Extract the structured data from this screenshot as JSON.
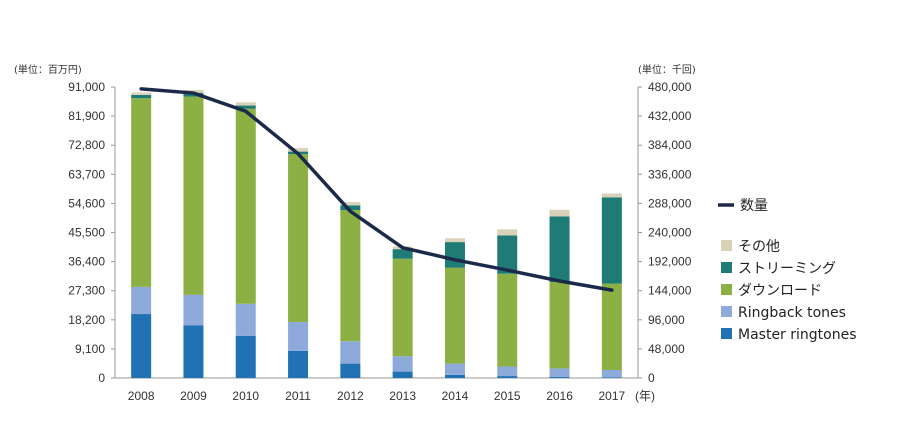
{
  "chart_data": {
    "type": "bar",
    "stacked": true,
    "secondary_line": true,
    "categories": [
      "2008",
      "2009",
      "2010",
      "2011",
      "2012",
      "2013",
      "2014",
      "2015",
      "2016",
      "2017"
    ],
    "x_suffix": "(年)",
    "left_unit": "(単位：百万円)",
    "right_unit": "(単位：千回)",
    "y_left": {
      "ylim": [
        0,
        91000
      ],
      "ticks": [
        "0",
        "9,100",
        "18,200",
        "27,300",
        "36,400",
        "45,500",
        "54,600",
        "63,700",
        "72,800",
        "81,900",
        "91,000"
      ]
    },
    "y_right": {
      "ylim": [
        0,
        480000
      ],
      "ticks": [
        "0",
        "48,000",
        "96,000",
        "144,000",
        "192,000",
        "240,000",
        "288,000",
        "336,000",
        "384,000",
        "432,000",
        "480,000"
      ]
    },
    "series": [
      {
        "name": "Master ringtones",
        "color": "#2171b5",
        "values": [
          20000,
          16500,
          13200,
          8500,
          4500,
          2000,
          1000,
          600,
          300,
          200
        ]
      },
      {
        "name": "Ringback tones",
        "color": "#8eaadb",
        "values": [
          8500,
          9500,
          10000,
          9000,
          7000,
          4800,
          3500,
          3000,
          2700,
          2300
        ]
      },
      {
        "name": "ダウンロード",
        "color": "#8cb043",
        "values": [
          59000,
          62000,
          61000,
          52500,
          41000,
          30500,
          30000,
          29000,
          27000,
          27000
        ]
      },
      {
        "name": "ストリーミング",
        "color": "#1e7b75",
        "values": [
          1000,
          1200,
          1000,
          800,
          1500,
          3000,
          8000,
          12000,
          20500,
          27000
        ]
      },
      {
        "name": "その他",
        "color": "#d9d2b8",
        "values": [
          800,
          900,
          1000,
          1100,
          1000,
          800,
          1200,
          1900,
          2100,
          1200
        ]
      }
    ],
    "line_series": {
      "name": "数量",
      "color": "#1b2a4a",
      "axis": "right",
      "values": [
        477000,
        470000,
        440000,
        370000,
        275000,
        215000,
        195000,
        178000,
        160000,
        145000
      ]
    },
    "legend_position": "right",
    "grid": false
  }
}
